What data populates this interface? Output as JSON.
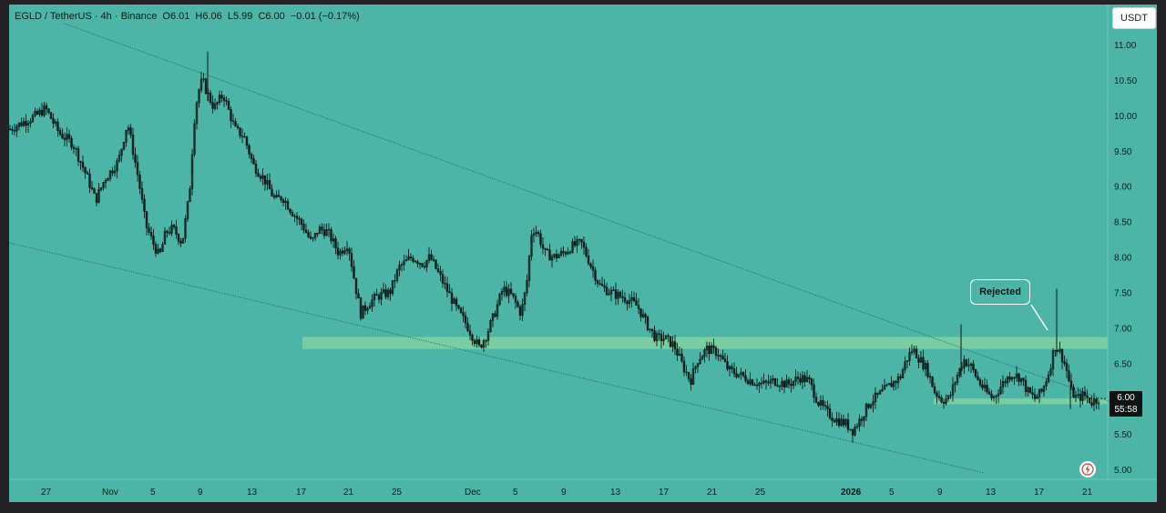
{
  "legend": {
    "symbol": "EGLD / TetherUS · 4h · Binance",
    "open": "O6.01",
    "high": "H6.06",
    "low": "L5.99",
    "close": "C6.00",
    "change": "−0.01 (−0.17%)"
  },
  "currency_button": "USDT",
  "last_price": {
    "price": "6.00",
    "countdown": "55:58"
  },
  "annotation": {
    "label": "Rejected"
  },
  "colors": {
    "background": "#4cb5a8",
    "candle": "#0b1a18",
    "zone": "#9fe29a",
    "trendline": "#2f5a55"
  },
  "chart_data": {
    "type": "candlestick",
    "title": "",
    "ylim": [
      4.85,
      11.3
    ],
    "y_ticks": [
      "11.00",
      "10.50",
      "10.00",
      "9.50",
      "9.00",
      "8.50",
      "8.00",
      "7.50",
      "7.00",
      "6.50",
      "6.00",
      "5.50",
      "5.00"
    ],
    "x_tick_labels": [
      "27",
      "Nov",
      "5",
      "9",
      "13",
      "17",
      "21",
      "25",
      "Dec",
      "5",
      "9",
      "13",
      "17",
      "21",
      "25",
      "2026",
      "5",
      "9",
      "13",
      "17",
      "21"
    ],
    "price_path": [
      [
        0,
        9.8
      ],
      [
        15,
        9.9
      ],
      [
        30,
        10.0
      ],
      [
        40,
        10.1
      ],
      [
        55,
        9.75
      ],
      [
        70,
        9.6
      ],
      [
        85,
        9.15
      ],
      [
        95,
        8.8
      ],
      [
        105,
        9.1
      ],
      [
        120,
        9.35
      ],
      [
        130,
        9.9
      ],
      [
        142,
        9.1
      ],
      [
        150,
        8.45
      ],
      [
        158,
        8.2
      ],
      [
        165,
        8.0
      ],
      [
        172,
        8.35
      ],
      [
        180,
        8.4
      ],
      [
        190,
        8.2
      ],
      [
        198,
        8.9
      ],
      [
        203,
        9.9
      ],
      [
        207,
        10.3
      ],
      [
        212,
        10.5
      ],
      [
        218,
        10.3
      ],
      [
        225,
        10.1
      ],
      [
        235,
        10.3
      ],
      [
        248,
        9.8
      ],
      [
        258,
        9.7
      ],
      [
        268,
        9.3
      ],
      [
        280,
        9.1
      ],
      [
        292,
        8.8
      ],
      [
        300,
        8.85
      ],
      [
        310,
        8.65
      ],
      [
        322,
        8.45
      ],
      [
        332,
        8.2
      ],
      [
        340,
        8.4
      ],
      [
        350,
        8.35
      ],
      [
        362,
        8.05
      ],
      [
        372,
        8.2
      ],
      [
        380,
        7.6
      ],
      [
        386,
        7.2
      ],
      [
        395,
        7.35
      ],
      [
        405,
        7.45
      ],
      [
        418,
        7.5
      ],
      [
        428,
        7.85
      ],
      [
        442,
        8.0
      ],
      [
        455,
        7.9
      ],
      [
        462,
        8.0
      ],
      [
        472,
        7.75
      ],
      [
        482,
        7.5
      ],
      [
        492,
        7.25
      ],
      [
        502,
        7.05
      ],
      [
        510,
        6.85
      ],
      [
        516,
        6.72
      ],
      [
        524,
        6.9
      ],
      [
        533,
        7.2
      ],
      [
        542,
        7.55
      ],
      [
        552,
        7.45
      ],
      [
        562,
        7.2
      ],
      [
        568,
        7.6
      ],
      [
        574,
        8.4
      ],
      [
        580,
        8.35
      ],
      [
        588,
        8.05
      ],
      [
        598,
        8.0
      ],
      [
        608,
        8.05
      ],
      [
        618,
        8.15
      ],
      [
        628,
        8.2
      ],
      [
        638,
        7.9
      ],
      [
        648,
        7.6
      ],
      [
        660,
        7.5
      ],
      [
        670,
        7.45
      ],
      [
        680,
        7.4
      ],
      [
        690,
        7.3
      ],
      [
        700,
        7.05
      ],
      [
        710,
        6.85
      ],
      [
        720,
        6.85
      ],
      [
        730,
        6.75
      ],
      [
        740,
        6.45
      ],
      [
        748,
        6.25
      ],
      [
        756,
        6.55
      ],
      [
        766,
        6.7
      ],
      [
        778,
        6.65
      ],
      [
        790,
        6.4
      ],
      [
        800,
        6.35
      ],
      [
        815,
        6.25
      ],
      [
        828,
        6.2
      ],
      [
        840,
        6.25
      ],
      [
        855,
        6.2
      ],
      [
        868,
        6.3
      ],
      [
        878,
        6.25
      ],
      [
        888,
        5.95
      ],
      [
        898,
        5.8
      ],
      [
        908,
        5.7
      ],
      [
        918,
        5.65
      ],
      [
        926,
        5.55
      ],
      [
        934,
        5.7
      ],
      [
        945,
        5.95
      ],
      [
        955,
        6.05
      ],
      [
        968,
        6.2
      ],
      [
        978,
        6.3
      ],
      [
        985,
        6.55
      ],
      [
        992,
        6.7
      ],
      [
        1000,
        6.55
      ],
      [
        1008,
        6.4
      ],
      [
        1016,
        6.1
      ],
      [
        1024,
        5.98
      ],
      [
        1032,
        6.0
      ],
      [
        1040,
        6.3
      ],
      [
        1048,
        6.55
      ],
      [
        1056,
        6.45
      ],
      [
        1064,
        6.25
      ],
      [
        1072,
        6.1
      ],
      [
        1080,
        6.0
      ],
      [
        1090,
        6.2
      ],
      [
        1100,
        6.35
      ],
      [
        1110,
        6.3
      ],
      [
        1118,
        6.1
      ],
      [
        1126,
        6.0
      ],
      [
        1134,
        6.1
      ],
      [
        1142,
        6.4
      ],
      [
        1148,
        6.75
      ],
      [
        1154,
        6.65
      ],
      [
        1160,
        6.45
      ],
      [
        1166,
        6.1
      ],
      [
        1172,
        6.0
      ],
      [
        1180,
        6.05
      ],
      [
        1188,
        5.95
      ],
      [
        1196,
        6.0
      ]
    ],
    "spikes": [
      {
        "x": 218,
        "low": 10.2,
        "high": 10.9
      },
      {
        "x": 1045,
        "low": 6.3,
        "high": 7.05
      },
      {
        "x": 1150,
        "low": 6.6,
        "high": 7.55
      },
      {
        "x": 1165,
        "low": 5.85,
        "high": 6.2
      }
    ],
    "upper_trendline": [
      [
        60,
        11.3
      ],
      [
        1210,
        5.95
      ]
    ],
    "lower_trendline": [
      [
        0,
        8.2
      ],
      [
        1070,
        4.95
      ]
    ],
    "resistance_zone": {
      "x_start": 322,
      "x_end": 1206,
      "low": 6.7,
      "high": 6.87
    },
    "support_zone": {
      "x_start": 1015,
      "x_end": 1206,
      "low": 5.92,
      "high": 6.0
    },
    "grid": false,
    "legend_position": "top-left"
  }
}
